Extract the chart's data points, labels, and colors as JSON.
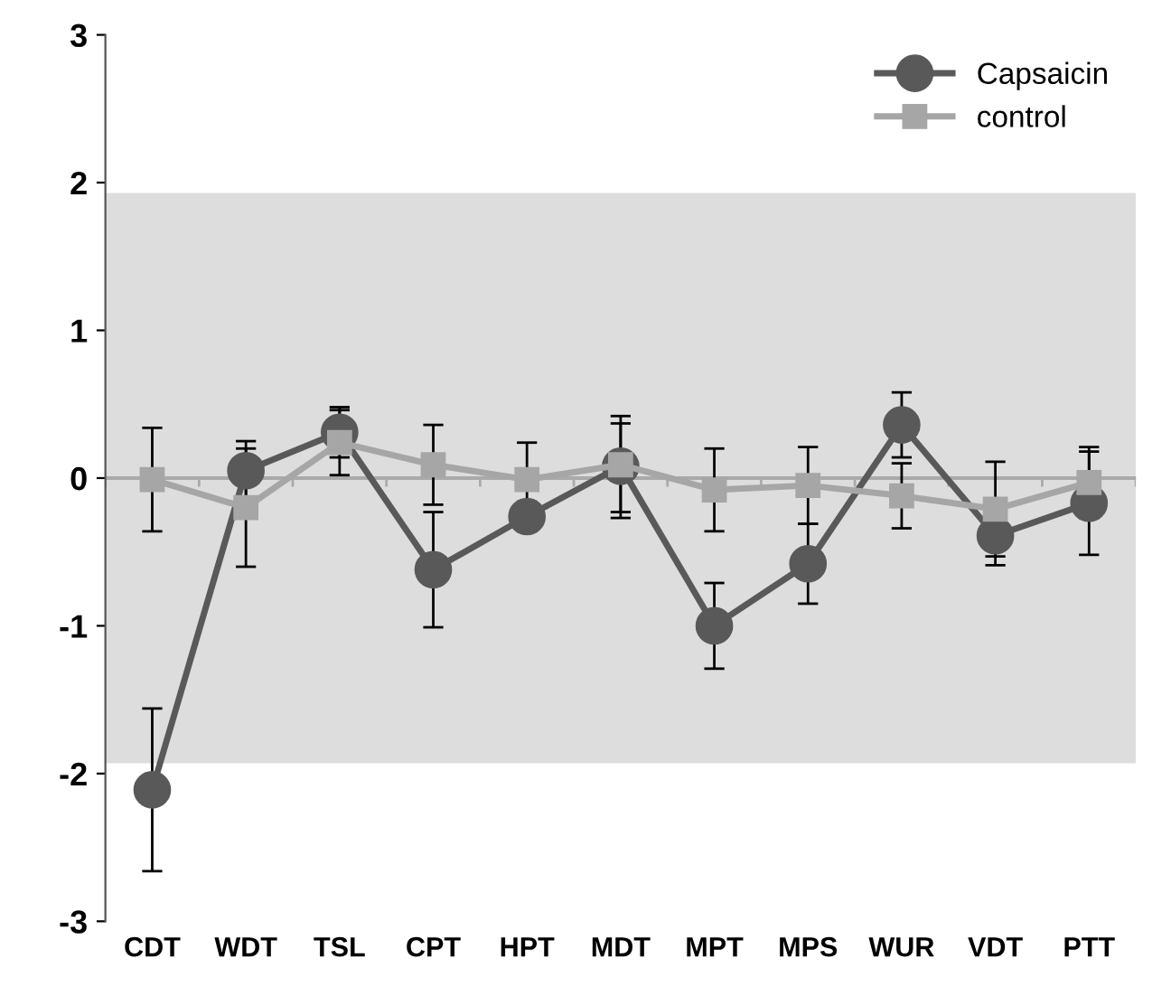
{
  "chart_data": {
    "type": "line",
    "categories": [
      "CDT",
      "WDT",
      "TSL",
      "CPT",
      "HPT",
      "MDT",
      "MPT",
      "MPS",
      "WUR",
      "VDT",
      "PTT"
    ],
    "series": [
      {
        "name": "Capsaicin",
        "color": "#595959",
        "marker": "circle",
        "values": [
          -2.11,
          0.05,
          0.31,
          -0.62,
          -0.26,
          0.08,
          -1.0,
          -0.58,
          0.36,
          -0.39,
          -0.17
        ],
        "errors": [
          0.55,
          0.2,
          0.17,
          0.39,
          0.1,
          [
            -0.23,
            0.37
          ],
          0.29,
          0.27,
          0.22,
          0.2,
          0.35
        ]
      },
      {
        "name": "control",
        "color": "#a6a6a6",
        "marker": "square",
        "values": [
          -0.01,
          -0.2,
          0.24,
          0.09,
          -0.01,
          0.09,
          -0.08,
          -0.05,
          -0.12,
          -0.21,
          -0.03
        ],
        "errors": [
          0.35,
          0.4,
          0.22,
          0.27,
          0.25,
          [
            -0.27,
            0.42
          ],
          0.28,
          0.26,
          0.22,
          0.32,
          0.24
        ]
      }
    ],
    "ylim": [
      -3,
      3
    ],
    "yticks": [
      -3,
      -2,
      -1,
      0,
      1,
      2,
      3
    ],
    "bands": [
      {
        "axis": "y",
        "from": -1.93,
        "to": 1.93,
        "color": "#dddddd"
      }
    ],
    "ref_lines": [
      {
        "axis": "y",
        "value": 0,
        "color": "#aaaaaa"
      }
    ],
    "legend": "top right",
    "line_style": "solid"
  }
}
